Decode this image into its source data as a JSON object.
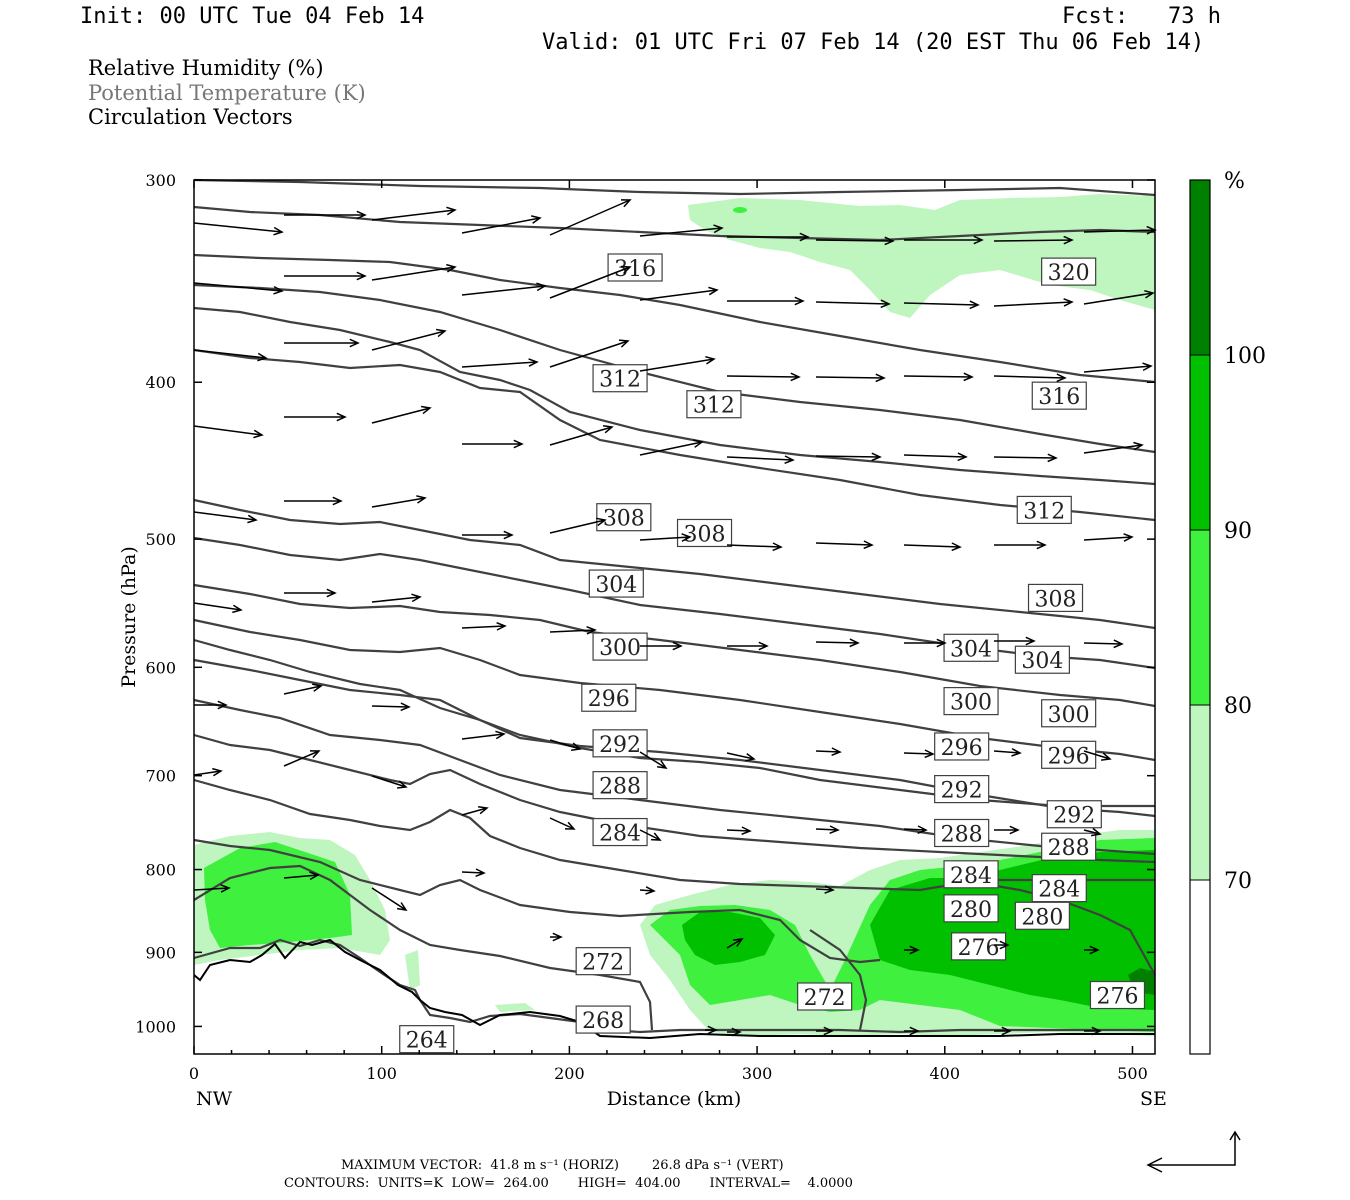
{
  "header": {
    "init": "Init: 00 UTC Tue 04 Feb 14",
    "fcst": "Fcst:   73 h",
    "valid": "Valid: 01 UTC Fri 07 Feb 14 (20 EST Thu 06 Feb 14)"
  },
  "legend": {
    "rh": "Relative Humidity (%)",
    "theta": "Potential Temperature (K)",
    "vectors": "Circulation Vectors"
  },
  "footer": {
    "max_vector": "MAXIMUM VECTOR:  41.8 m s⁻¹ (HORIZ)        26.8 dPa s⁻¹ (VERT)",
    "contours": "CONTOURS:  UNITS=K  LOW=  264.00       HIGH=  404.00       INTERVAL=    4.0000"
  },
  "colorbar": {
    "unit": "%",
    "levels": [
      70,
      80,
      90,
      100
    ],
    "colors": [
      "#ffffff",
      "#bff5bf",
      "#3ff03f",
      "#00c000",
      "#008000"
    ]
  },
  "chart_data": {
    "type": "cross-section",
    "xlabel": "Distance (km)",
    "ylabel": "Pressure (hPa)",
    "xlim": [
      0,
      512
    ],
    "ylim": [
      1040,
      300
    ],
    "y_scale": "log",
    "x_ticks": [
      0,
      100,
      200,
      300,
      400,
      500
    ],
    "y_ticks": [
      300,
      400,
      500,
      600,
      700,
      800,
      900,
      1000
    ],
    "x_end_labels": {
      "left": "NW",
      "right": "SE"
    },
    "contour_variable": "Potential Temperature (K)",
    "contour_interval": 4,
    "contour_low": 264,
    "contour_high": 404,
    "contour_labels": [
      {
        "value": "316",
        "x": 235,
        "p": 340
      },
      {
        "value": "320",
        "x": 466,
        "p": 342
      },
      {
        "value": "312",
        "x": 227,
        "p": 398
      },
      {
        "value": "312",
        "x": 277,
        "p": 413
      },
      {
        "value": "316",
        "x": 461,
        "p": 408
      },
      {
        "value": "308",
        "x": 229,
        "p": 485
      },
      {
        "value": "308",
        "x": 272,
        "p": 496
      },
      {
        "value": "312",
        "x": 453,
        "p": 480
      },
      {
        "value": "304",
        "x": 225,
        "p": 533
      },
      {
        "value": "308",
        "x": 459,
        "p": 544
      },
      {
        "value": "300",
        "x": 227,
        "p": 583
      },
      {
        "value": "304",
        "x": 414,
        "p": 584
      },
      {
        "value": "304",
        "x": 452,
        "p": 594
      },
      {
        "value": "296",
        "x": 221,
        "p": 627
      },
      {
        "value": "300",
        "x": 414,
        "p": 630
      },
      {
        "value": "300",
        "x": 466,
        "p": 641
      },
      {
        "value": "292",
        "x": 227,
        "p": 669
      },
      {
        "value": "296",
        "x": 409,
        "p": 672
      },
      {
        "value": "296",
        "x": 466,
        "p": 680
      },
      {
        "value": "288",
        "x": 227,
        "p": 710
      },
      {
        "value": "292",
        "x": 409,
        "p": 714
      },
      {
        "value": "292",
        "x": 469,
        "p": 740
      },
      {
        "value": "284",
        "x": 227,
        "p": 759
      },
      {
        "value": "288",
        "x": 409,
        "p": 760
      },
      {
        "value": "288",
        "x": 466,
        "p": 775
      },
      {
        "value": "284",
        "x": 414,
        "p": 806
      },
      {
        "value": "284",
        "x": 461,
        "p": 822
      },
      {
        "value": "280",
        "x": 414,
        "p": 846
      },
      {
        "value": "280",
        "x": 452,
        "p": 855
      },
      {
        "value": "276",
        "x": 418,
        "p": 893
      },
      {
        "value": "272",
        "x": 218,
        "p": 912
      },
      {
        "value": "272",
        "x": 336,
        "p": 959
      },
      {
        "value": "276",
        "x": 492,
        "p": 957
      },
      {
        "value": "268",
        "x": 218,
        "p": 991
      },
      {
        "value": "264",
        "x": 124,
        "p": 1019
      }
    ],
    "shading_variable": "Relative Humidity (%)",
    "shading_levels": [
      70,
      80,
      90,
      100
    ]
  }
}
